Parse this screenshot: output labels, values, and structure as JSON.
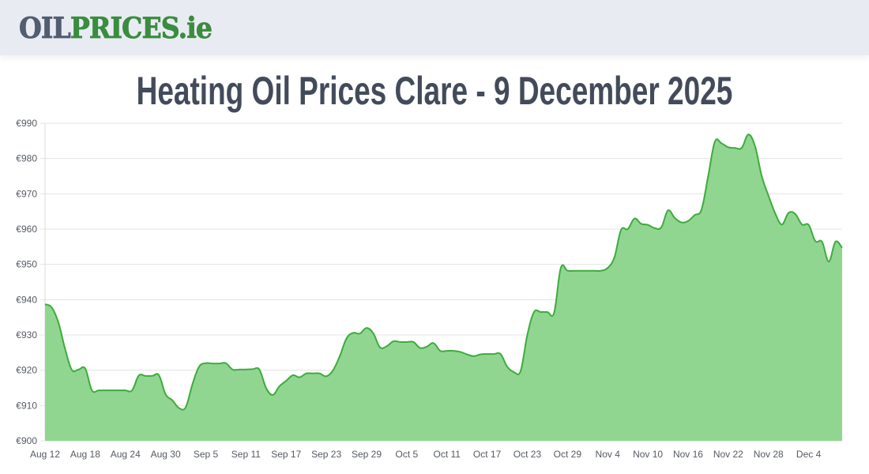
{
  "header": {
    "logo_part1": "OIL",
    "logo_part2": "PRICES",
    "logo_part3": ".ie",
    "logo_colors": {
      "part1": "#535d70",
      "part2": "#3a8c3f"
    }
  },
  "page": {
    "title": "Heating Oil Prices Clare - 9 December 2025"
  },
  "chart_data": {
    "type": "area",
    "title": "Heating Oil Prices Clare - 9 December 2025",
    "xlabel": "",
    "ylabel": "",
    "currency_prefix": "€",
    "ylim": [
      900,
      990
    ],
    "yticks": [
      900,
      910,
      920,
      930,
      940,
      950,
      960,
      970,
      980,
      990
    ],
    "ytick_labels": [
      "€900",
      "€910",
      "€920",
      "€930",
      "€940",
      "€950",
      "€960",
      "€970",
      "€980",
      "€990"
    ],
    "xtick_labels": [
      "Aug 12",
      "Aug 18",
      "Aug 24",
      "Aug 30",
      "Sep 5",
      "Sep 11",
      "Sep 17",
      "Sep 23",
      "Sep 29",
      "Oct 5",
      "Oct 11",
      "Oct 17",
      "Oct 23",
      "Oct 29",
      "Nov 4",
      "Nov 10",
      "Nov 16",
      "Nov 22",
      "Nov 28",
      "Dec 4"
    ],
    "xtick_every_days": 6,
    "grid": true,
    "legend": "none",
    "line_color": "#3cac3c",
    "fill_color": "#90d690",
    "start_date": "Aug 12",
    "end_date": "Dec 9",
    "series": [
      {
        "name": "Heating Oil Price (Clare)",
        "x": [
          "Aug 12",
          "Aug 13",
          "Aug 14",
          "Aug 15",
          "Aug 16",
          "Aug 17",
          "Aug 18",
          "Aug 19",
          "Aug 20",
          "Aug 21",
          "Aug 22",
          "Aug 23",
          "Aug 24",
          "Aug 25",
          "Aug 26",
          "Aug 27",
          "Aug 28",
          "Aug 29",
          "Aug 30",
          "Aug 31",
          "Sep 1",
          "Sep 2",
          "Sep 3",
          "Sep 4",
          "Sep 5",
          "Sep 6",
          "Sep 7",
          "Sep 8",
          "Sep 9",
          "Sep 10",
          "Sep 11",
          "Sep 12",
          "Sep 13",
          "Sep 14",
          "Sep 15",
          "Sep 16",
          "Sep 17",
          "Sep 18",
          "Sep 19",
          "Sep 20",
          "Sep 21",
          "Sep 22",
          "Sep 23",
          "Sep 24",
          "Sep 25",
          "Sep 26",
          "Sep 27",
          "Sep 28",
          "Sep 29",
          "Sep 30",
          "Oct 1",
          "Oct 2",
          "Oct 3",
          "Oct 4",
          "Oct 5",
          "Oct 6",
          "Oct 7",
          "Oct 8",
          "Oct 9",
          "Oct 10",
          "Oct 11",
          "Oct 12",
          "Oct 13",
          "Oct 14",
          "Oct 15",
          "Oct 16",
          "Oct 17",
          "Oct 18",
          "Oct 19",
          "Oct 20",
          "Oct 21",
          "Oct 22",
          "Oct 23",
          "Oct 24",
          "Oct 25",
          "Oct 26",
          "Oct 27",
          "Oct 28",
          "Oct 29",
          "Oct 30",
          "Oct 31",
          "Nov 1",
          "Nov 2",
          "Nov 3",
          "Nov 4",
          "Nov 5",
          "Nov 6",
          "Nov 7",
          "Nov 8",
          "Nov 9",
          "Nov 10",
          "Nov 11",
          "Nov 12",
          "Nov 13",
          "Nov 14",
          "Nov 15",
          "Nov 16",
          "Nov 17",
          "Nov 18",
          "Nov 19",
          "Nov 20",
          "Nov 21",
          "Nov 22",
          "Nov 23",
          "Nov 24",
          "Nov 25",
          "Nov 26",
          "Nov 27",
          "Nov 28",
          "Nov 29",
          "Nov 30",
          "Dec 1",
          "Dec 2",
          "Dec 3",
          "Dec 4",
          "Dec 5",
          "Dec 6",
          "Dec 7",
          "Dec 8",
          "Dec 9"
        ],
        "values": [
          938.7,
          937.8,
          933.5,
          926,
          920.1,
          920.2,
          920.5,
          914.3,
          914.3,
          914.3,
          914.3,
          914.3,
          914.3,
          914.3,
          918.5,
          918.4,
          918.4,
          918.6,
          913.2,
          911.5,
          909.3,
          909.5,
          916,
          921,
          922,
          921.9,
          921.9,
          922,
          920.2,
          920.2,
          920.2,
          920.3,
          920.2,
          915,
          913,
          915.5,
          917,
          918.6,
          918,
          919.1,
          919.1,
          919.1,
          918.3,
          920,
          924,
          929,
          930.6,
          930.4,
          932,
          930.5,
          926.5,
          926.8,
          928.2,
          928,
          928,
          928,
          926.3,
          926.7,
          927.7,
          925.5,
          925.5,
          925.5,
          925.2,
          924.5,
          924,
          924.5,
          924.6,
          924.6,
          924.6,
          921,
          919.5,
          919.8,
          930,
          936.5,
          936.5,
          936.5,
          936.3,
          949,
          948.2,
          948.2,
          948.2,
          948.2,
          948.2,
          948.2,
          949,
          952,
          959.8,
          960,
          963,
          961.5,
          961.2,
          960.3,
          960.5,
          965.3,
          963.2,
          961.9,
          962.3,
          964,
          965.5,
          975,
          984.8,
          984.3,
          983.2,
          983,
          983,
          986.8,
          983.5,
          975,
          969.5,
          964.5,
          961.3,
          964.6,
          964.3,
          961.3,
          961.2,
          956.6,
          956.4,
          950.8,
          956.4,
          954.7
        ]
      }
    ]
  }
}
